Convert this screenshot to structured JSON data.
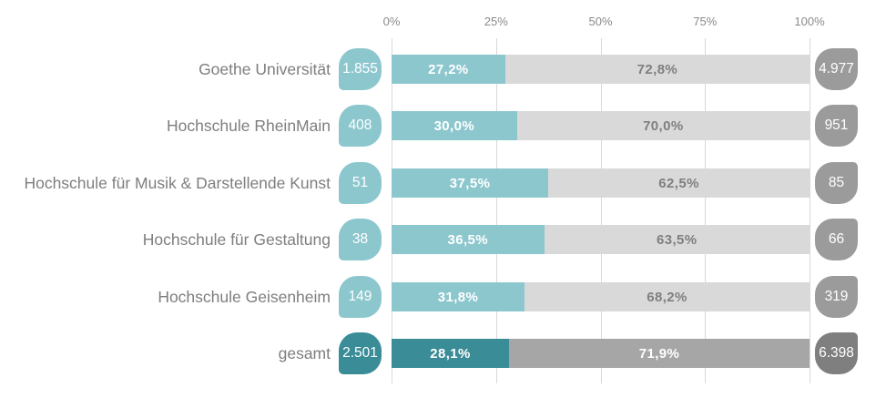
{
  "axis": {
    "ticks": [
      "0%",
      "25%",
      "50%",
      "75%",
      "100%"
    ]
  },
  "rows": [
    {
      "label": "Goethe Universität",
      "left_count": "1.855",
      "left_pct_label": "27,2%",
      "right_pct_label": "72,8%",
      "right_count": "4.977",
      "left_pct": 27.2,
      "emphasis": false
    },
    {
      "label": "Hochschule RheinMain",
      "left_count": "408",
      "left_pct_label": "30,0%",
      "right_pct_label": "70,0%",
      "right_count": "951",
      "left_pct": 30.0,
      "emphasis": false
    },
    {
      "label": "Hochschule für Musik & Darstellende Kunst",
      "left_count": "51",
      "left_pct_label": "37,5%",
      "right_pct_label": "62,5%",
      "right_count": "85",
      "left_pct": 37.5,
      "emphasis": false
    },
    {
      "label": "Hochschule für Gestaltung",
      "left_count": "38",
      "left_pct_label": "36,5%",
      "right_pct_label": "63,5%",
      "right_count": "66",
      "left_pct": 36.5,
      "emphasis": false
    },
    {
      "label": "Hochschule Geisenheim",
      "left_count": "149",
      "left_pct_label": "31,8%",
      "right_pct_label": "68,2%",
      "right_count": "319",
      "left_pct": 31.8,
      "emphasis": false
    },
    {
      "label": "gesamt",
      "left_count": "2.501",
      "left_pct_label": "28,1%",
      "right_pct_label": "71,9%",
      "right_count": "6.398",
      "left_pct": 28.1,
      "emphasis": true
    }
  ],
  "colors": {
    "teal_light": "#8DC7CE",
    "teal_dark": "#3A8C96",
    "gray_segment_light": "#D9D9D9",
    "gray_segment_dark": "#A6A6A6",
    "pill_gray_light": "#9B9B9B",
    "pill_gray_dark": "#7F7F7F",
    "label_on_light_gray": "#7F7F7F",
    "label_on_teal": "#FFFFFF",
    "axis_text": "#8A8A8A",
    "row_label_text": "#7E7E7E",
    "gridline": "#D9D9D9"
  },
  "chart_data": {
    "type": "bar",
    "orientation": "horizontal",
    "stacked": true,
    "categories": [
      "Goethe Universität",
      "Hochschule RheinMain",
      "Hochschule für Musik & Darstellende Kunst",
      "Hochschule für Gestaltung",
      "Hochschule Geisenheim",
      "gesamt"
    ],
    "series": [
      {
        "name": "teal share (%)",
        "values": [
          27.2,
          30.0,
          37.5,
          36.5,
          31.8,
          28.1
        ]
      },
      {
        "name": "gray share (%)",
        "values": [
          72.8,
          70.0,
          62.5,
          63.5,
          68.2,
          71.9
        ]
      }
    ],
    "left_counts": [
      1855,
      408,
      51,
      38,
      149,
      2501
    ],
    "right_counts": [
      4977,
      951,
      85,
      66,
      319,
      6398
    ],
    "xlabel": "",
    "ylabel": "",
    "xlim": [
      0,
      100
    ],
    "x_tick_labels": [
      "0%",
      "25%",
      "50%",
      "75%",
      "100%"
    ],
    "grid": true,
    "legend": false
  }
}
